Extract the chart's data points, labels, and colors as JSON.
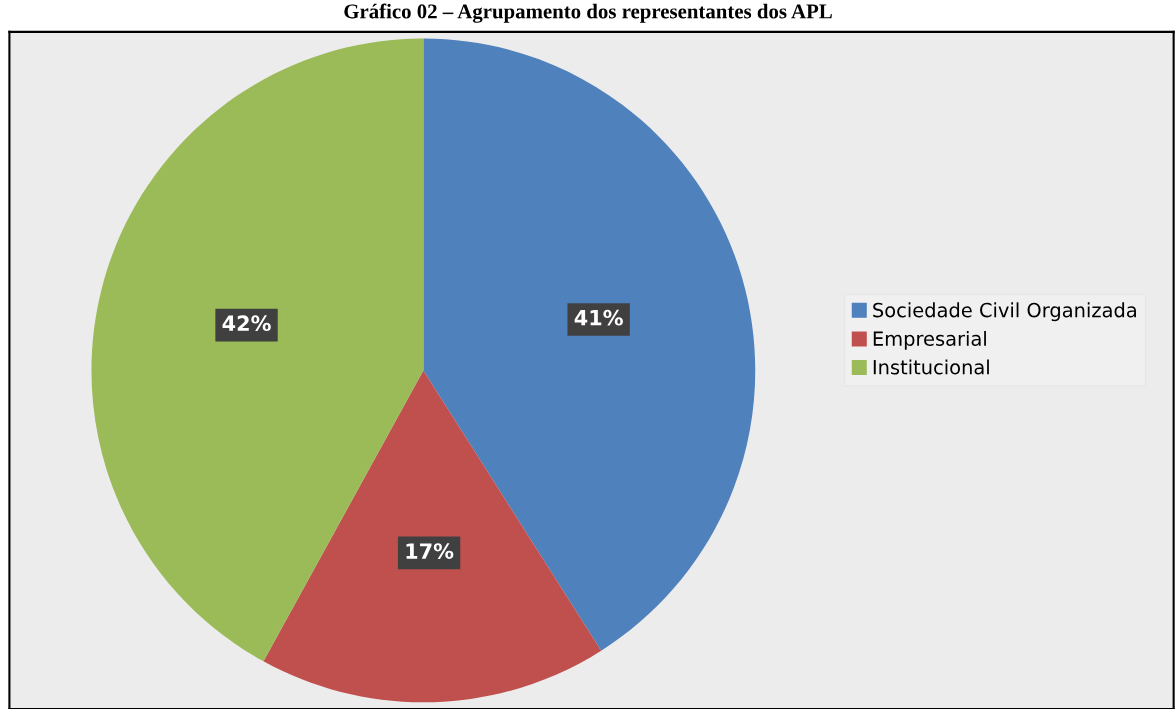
{
  "chart_data": {
    "type": "pie",
    "title": "Gráfico 02 – Agrupamento dos representantes dos APL",
    "categories": [
      "Sociedade Civil Organizada",
      "Empresarial",
      "Institucional"
    ],
    "values": [
      41,
      17,
      42
    ],
    "colors": [
      "#4f81bd",
      "#c0504d",
      "#9bbb59"
    ],
    "value_labels": [
      "41%",
      "17%",
      "42%"
    ],
    "legend": "right"
  }
}
